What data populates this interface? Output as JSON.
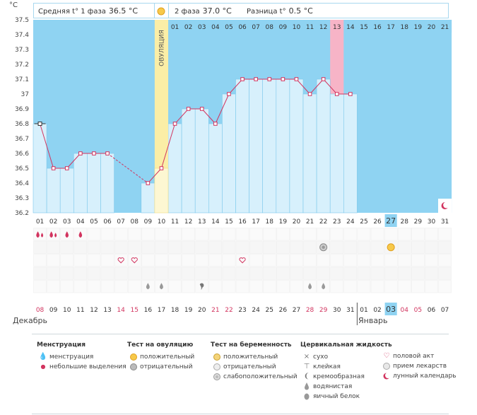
{
  "header": {
    "phase1_label": "Средняя t° 1 фаза",
    "phase1_value": "36.5 °C",
    "phase2_label": "2 фаза",
    "phase2_value": "37.0 °C",
    "diff_label": "Разница t°",
    "diff_value": "0.5 °C"
  },
  "chart_data": {
    "type": "line",
    "title": "",
    "ylabel": "°C",
    "ylim": [
      36.2,
      37.5
    ],
    "yticks": [
      "36.2",
      "36.3",
      "36.4",
      "36.5",
      "36.6",
      "36.7",
      "36.8",
      "36.9",
      "37",
      "37.1",
      "37.2",
      "37.3",
      "37.4",
      "37.5"
    ],
    "cycle_days": [
      "01",
      "02",
      "03",
      "04",
      "05",
      "06",
      "07",
      "08",
      "09",
      "10",
      "11",
      "12",
      "13",
      "14",
      "15",
      "16",
      "17",
      "18",
      "19",
      "20",
      "21",
      "22",
      "23",
      "24",
      "25",
      "26",
      "27",
      "28",
      "29",
      "30",
      "31"
    ],
    "phase2_day_labels": [
      "01",
      "02",
      "03",
      "04",
      "05",
      "06",
      "07",
      "08",
      "09",
      "10",
      "11",
      "12",
      "13",
      "14",
      "15",
      "16",
      "17",
      "18",
      "19",
      "20",
      "21"
    ],
    "ovulation_label": "ОВУЛЯЦИЯ",
    "ovulation_day": 10,
    "highlight_phase2_day": "13",
    "today_cycle_day": 27,
    "series": [
      {
        "values": [
          36.8,
          36.5,
          36.5,
          36.6,
          36.6,
          36.6,
          null,
          null,
          36.4,
          36.5,
          36.8,
          36.9,
          36.9,
          36.8,
          37.0,
          37.1,
          37.1,
          37.1,
          37.1,
          37.1,
          37.0,
          37.1,
          37.0,
          37.0,
          null,
          null,
          null,
          null,
          null,
          null,
          null
        ]
      }
    ],
    "calendar_dates": [
      "08",
      "09",
      "10",
      "11",
      "12",
      "13",
      "14",
      "15",
      "16",
      "17",
      "18",
      "19",
      "20",
      "21",
      "22",
      "23",
      "24",
      "25",
      "26",
      "27",
      "28",
      "29",
      "30",
      "31",
      "01",
      "02",
      "03",
      "04",
      "05",
      "06",
      "07"
    ],
    "weekend_date_indices": [
      0,
      6,
      7,
      13,
      14,
      20,
      21,
      27,
      28
    ],
    "months": [
      "Декабрь",
      "Январь"
    ],
    "colors": {
      "sky": "#8fd3f2",
      "bar": "#d7f0fc",
      "bar_border": "#7cc8ec",
      "line": "#d2345f",
      "ovulation": "#fbeea6",
      "pink": "#f7b4c7",
      "weekend": "#d2345f"
    }
  },
  "symbols": {
    "menstruation_days": [
      1,
      2,
      3,
      4
    ],
    "ovulation_test_neg_day": 22,
    "ovulation_test_pos_day": 27,
    "sex_days": [
      7,
      8,
      16
    ],
    "fluid_watery_days": [
      9,
      10,
      21,
      22
    ],
    "fluid_creamy_day": 13,
    "lunar_day": 31
  },
  "legend": {
    "menstruation": {
      "title": "Менструация",
      "items": [
        "менструация",
        "небольшие выделения"
      ]
    },
    "ovulation_test": {
      "title": "Тест на овуляцию",
      "items": [
        "положительный",
        "отрицательный"
      ]
    },
    "pregnancy_test": {
      "title": "Тест на беременность",
      "items": [
        "положительный",
        "отрицательный",
        "слабоположительный"
      ]
    },
    "cervical_fluid": {
      "title": "Цервикальная жидкость",
      "items": [
        "сухо",
        "клейкая",
        "кремообразная",
        "водянистая",
        "яичный белок"
      ]
    },
    "other": {
      "items": [
        "половой акт",
        "прием лекарств",
        "лунный календарь"
      ]
    }
  }
}
